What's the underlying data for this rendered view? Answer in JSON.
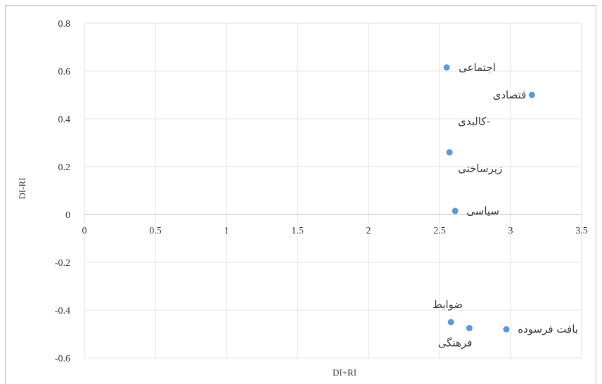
{
  "chart_data": {
    "type": "scatter",
    "xlabel": "DI+RI",
    "ylabel": "DI-RI",
    "xlim": [
      0,
      3.5
    ],
    "ylim": [
      -0.6,
      0.8
    ],
    "x_ticks": [
      "0",
      "0.5",
      "1",
      "1.5",
      "2",
      "2.5",
      "3",
      "3.5"
    ],
    "y_ticks": [
      "0.8",
      "0.6",
      "0.4",
      "0.2",
      "0",
      "-0.2",
      "-0.4",
      "-0.6"
    ],
    "grid": true,
    "point_color": "#5b9bd5",
    "points": [
      {
        "label": "اجتماعی",
        "x": 2.55,
        "y": 0.615
      },
      {
        "label": "قتصادی",
        "x": 3.15,
        "y": 0.5
      },
      {
        "label": "کالبدی-",
        "label2": "زیرساختی",
        "x": 2.57,
        "y": 0.26
      },
      {
        "label": "سیاسی",
        "x": 2.61,
        "y": 0.015
      },
      {
        "label": "ضوابط",
        "x": 2.58,
        "y": -0.45
      },
      {
        "label": "فرهنگی",
        "x": 2.71,
        "y": -0.475
      },
      {
        "label": "بافت فرسوده",
        "x": 2.97,
        "y": -0.48
      }
    ]
  }
}
